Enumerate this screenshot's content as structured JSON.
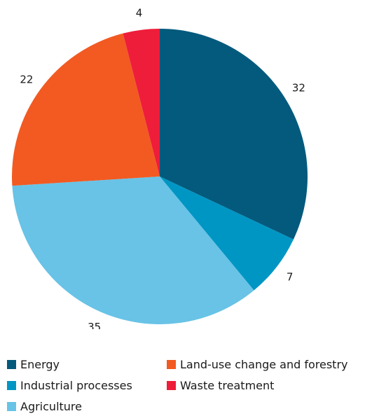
{
  "chart_data": {
    "type": "pie",
    "title": "",
    "categories": [
      "Energy",
      "Industrial processes",
      "Agriculture",
      "Land-use change and forestry",
      "Waste treatment"
    ],
    "values": [
      32,
      7,
      35,
      22,
      4
    ],
    "data_labels": [
      "32",
      "7",
      "35",
      "22",
      "4"
    ],
    "colors": [
      "#045a7d",
      "#0096c4",
      "#68c3e6",
      "#f25a22",
      "#ee1d3a"
    ],
    "start_angle": "12 o'clock",
    "direction": "clockwise",
    "legend": {
      "placement": "bottom",
      "entries": [
        {
          "label": "Energy",
          "color": "#045a7d"
        },
        {
          "label": "Land-use change and forestry",
          "color": "#f25a22"
        },
        {
          "label": "Industrial processes",
          "color": "#0096c4"
        },
        {
          "label": "Waste treatment",
          "color": "#ee1d3a"
        },
        {
          "label": "Agriculture",
          "color": "#68c3e6"
        }
      ]
    }
  }
}
